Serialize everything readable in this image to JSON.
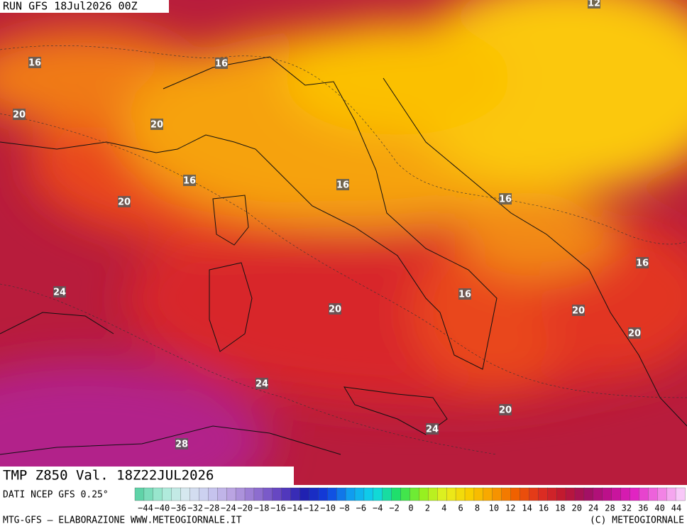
{
  "header": {
    "run": "RUN GFS 18Jul2026 00Z"
  },
  "contour_labels": [
    "12",
    "16",
    "16",
    "20",
    "20",
    "16",
    "20",
    "16",
    "16",
    "16",
    "24",
    "20",
    "16",
    "20",
    "20",
    "24",
    "20",
    "24",
    "28"
  ],
  "footer": {
    "title": "TMP Z850 Val. 18Z22JUL2026",
    "source": "DATI NCEP GFS 0.25°",
    "credit_left": "MTG-GFS — ELABORAZIONE WWW.METEOGIORNALE.IT",
    "credit_right": "(C) METEOGIORNALE"
  },
  "colorbar": {
    "labels": [
      "−44",
      "−40",
      "−36",
      "−32",
      "−28",
      "−24",
      "−20",
      "−18",
      "−16",
      "−14",
      "−12",
      "−10",
      "−8",
      "−6",
      "−4",
      "−2",
      "0",
      "2",
      "4",
      "6",
      "8",
      "10",
      "12",
      "14",
      "16",
      "18",
      "20",
      "24",
      "28",
      "32",
      "36",
      "40",
      "44"
    ]
  }
}
